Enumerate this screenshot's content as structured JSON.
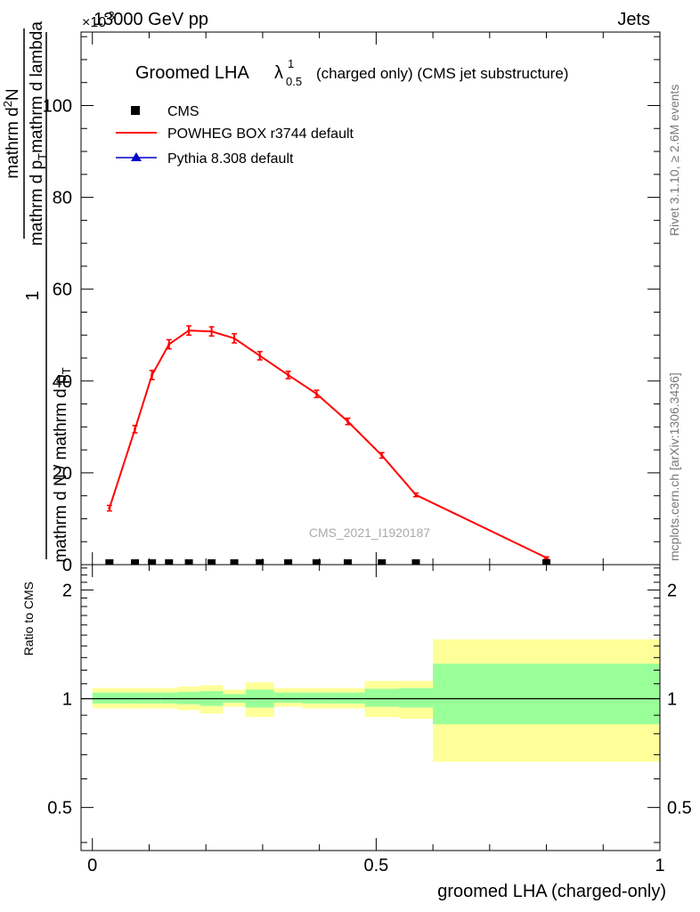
{
  "header": {
    "left": "13000 GeV pp",
    "right": "Jets",
    "exponent_mark": "×10",
    "exponent_value": "-3"
  },
  "side_text": {
    "rivet": "Rivet 3.1.10, ≥ 2.6M events",
    "mcplots": "mcplots.cern.ch [arXiv:1306.3436]"
  },
  "watermark": "CMS_2021_I1920187",
  "title": {
    "main": "Groomed LHA",
    "lambda": "λ",
    "sup": "1",
    "sub": "0.5",
    "rest": "(charged only) (CMS jet substructure)"
  },
  "y_axis": {
    "numerator_one": "1",
    "denominator_one": "mathrm d N / mathrm d p",
    "denominator_one_sub": "T",
    "numerator_two": "mathrm d",
    "numerator_two_sup": "2",
    "numerator_two_rest": "N",
    "denominator_two": "mathrm d p",
    "denominator_two_sub": "T",
    "denominator_two_rest": "mathrm d lambda"
  },
  "ratio_ylabel": "Ratio to CMS",
  "xlabel": "groomed LHA (charged-only)",
  "legend": [
    {
      "label": "CMS",
      "color": "#000000",
      "marker": "square"
    },
    {
      "label": "POWHEG BOX r3744 default",
      "color": "#ff0000",
      "marker": "line"
    },
    {
      "label": "Pythia 8.308 default",
      "color": "#0000cc",
      "marker": "triangle"
    }
  ],
  "chart_data": [
    {
      "type": "line",
      "panel": "main",
      "xlim": [
        -0.02,
        1.0
      ],
      "ylim": [
        0,
        116
      ],
      "y_scale_note": "×10^-3",
      "x_ticks": [
        0,
        0.5,
        1
      ],
      "y_ticks": [
        0,
        20,
        40,
        60,
        80,
        100
      ],
      "y_tick_labels": [
        "0",
        "20",
        "40",
        "60",
        "80",
        "100"
      ],
      "series": [
        {
          "name": "POWHEG BOX r3744 default",
          "color": "#ff0000",
          "x": [
            0.03,
            0.075,
            0.105,
            0.135,
            0.17,
            0.21,
            0.25,
            0.295,
            0.345,
            0.395,
            0.45,
            0.51,
            0.57,
            0.8
          ],
          "y": [
            12.3,
            29.5,
            41.3,
            48.0,
            51.0,
            50.8,
            49.3,
            45.5,
            41.3,
            37.2,
            31.2,
            23.8,
            15.2,
            1.5
          ],
          "err": [
            0.6,
            0.8,
            1.0,
            1.0,
            1.0,
            1.0,
            1.0,
            0.9,
            0.8,
            0.8,
            0.7,
            0.6,
            0.4,
            0.2
          ]
        },
        {
          "name": "CMS",
          "color": "#000000",
          "x": [
            0.03,
            0.075,
            0.105,
            0.135,
            0.17,
            0.21,
            0.25,
            0.295,
            0.345,
            0.395,
            0.45,
            0.51,
            0.57,
            0.8
          ],
          "y": [
            0,
            0,
            0,
            0,
            0,
            0,
            0,
            0,
            0,
            0,
            0,
            0,
            0,
            0
          ]
        },
        {
          "name": "Pythia 8.308 default",
          "color": "#0000cc",
          "x": [],
          "y": []
        }
      ]
    },
    {
      "type": "area",
      "panel": "ratio",
      "xlim": [
        -0.02,
        1.0
      ],
      "ylim": [
        0.38,
        2.35
      ],
      "y_scale": "log",
      "y_ticks": [
        0.5,
        1,
        2
      ],
      "y_tick_labels": [
        "0.5",
        "1",
        "2"
      ],
      "x_tick_labels": [
        "0",
        "0.5",
        "1"
      ],
      "bins": [
        {
          "lo": 0.0,
          "hi": 0.06,
          "y_lo": 0.94,
          "y_hi": 1.07,
          "g_lo": 0.97,
          "g_hi": 1.04
        },
        {
          "lo": 0.06,
          "hi": 0.09,
          "y_lo": 0.94,
          "y_hi": 1.07,
          "g_lo": 0.97,
          "g_hi": 1.04
        },
        {
          "lo": 0.09,
          "hi": 0.12,
          "y_lo": 0.94,
          "y_hi": 1.07,
          "g_lo": 0.97,
          "g_hi": 1.04
        },
        {
          "lo": 0.12,
          "hi": 0.15,
          "y_lo": 0.94,
          "y_hi": 1.07,
          "g_lo": 0.97,
          "g_hi": 1.04
        },
        {
          "lo": 0.15,
          "hi": 0.19,
          "y_lo": 0.93,
          "y_hi": 1.08,
          "g_lo": 0.965,
          "g_hi": 1.045
        },
        {
          "lo": 0.19,
          "hi": 0.23,
          "y_lo": 0.91,
          "y_hi": 1.09,
          "g_lo": 0.955,
          "g_hi": 1.05
        },
        {
          "lo": 0.23,
          "hi": 0.27,
          "y_lo": 0.95,
          "y_hi": 1.06,
          "g_lo": 0.975,
          "g_hi": 1.03
        },
        {
          "lo": 0.27,
          "hi": 0.32,
          "y_lo": 0.89,
          "y_hi": 1.11,
          "g_lo": 0.945,
          "g_hi": 1.06
        },
        {
          "lo": 0.32,
          "hi": 0.37,
          "y_lo": 0.95,
          "y_hi": 1.07,
          "g_lo": 0.975,
          "g_hi": 1.04
        },
        {
          "lo": 0.37,
          "hi": 0.42,
          "y_lo": 0.94,
          "y_hi": 1.07,
          "g_lo": 0.97,
          "g_hi": 1.04
        },
        {
          "lo": 0.42,
          "hi": 0.48,
          "y_lo": 0.94,
          "y_hi": 1.07,
          "g_lo": 0.97,
          "g_hi": 1.04
        },
        {
          "lo": 0.48,
          "hi": 0.54,
          "y_lo": 0.89,
          "y_hi": 1.12,
          "g_lo": 0.95,
          "g_hi": 1.065
        },
        {
          "lo": 0.54,
          "hi": 0.6,
          "y_lo": 0.88,
          "y_hi": 1.12,
          "g_lo": 0.945,
          "g_hi": 1.07
        },
        {
          "lo": 0.6,
          "hi": 1.0,
          "y_lo": 0.67,
          "y_hi": 1.46,
          "g_lo": 0.85,
          "g_hi": 1.25
        }
      ],
      "band_colors": {
        "yellow": "#ffff99",
        "green": "#99ff99"
      },
      "reference_line": 1
    }
  ]
}
